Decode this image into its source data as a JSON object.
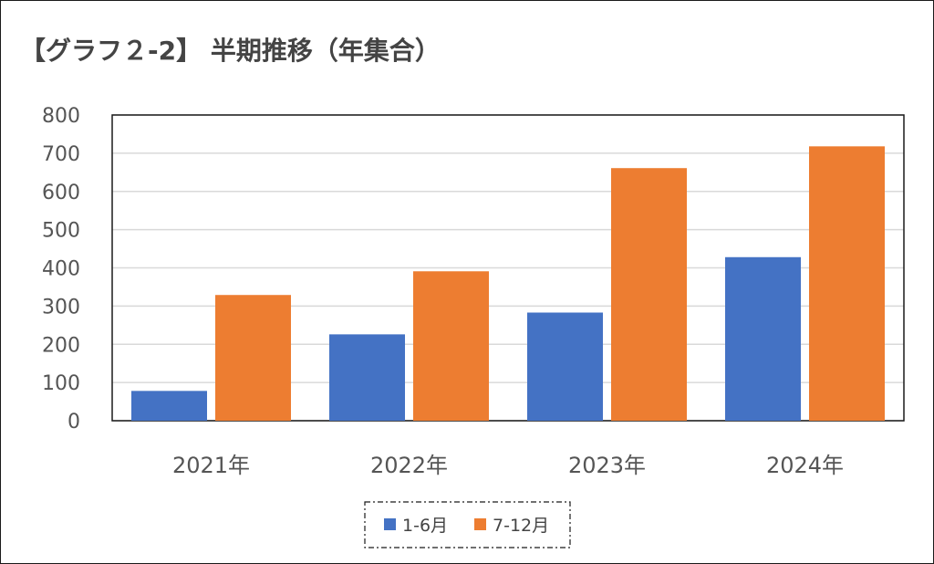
{
  "chart_data": {
    "type": "bar",
    "title": "【グラフ２-2】 半期推移（年集合）",
    "categories": [
      "2021年",
      "2022年",
      "2023年",
      "2024年"
    ],
    "series": [
      {
        "name": "1-6月",
        "color": "#4472C4",
        "values": [
          78,
          226,
          283,
          428
        ]
      },
      {
        "name": "7-12月",
        "color": "#ED7D31",
        "values": [
          329,
          391,
          661,
          718
        ]
      }
    ],
    "yticks": [
      "0",
      "100",
      "200",
      "300",
      "400",
      "500",
      "600",
      "700",
      "800"
    ],
    "ylim": [
      0,
      800
    ],
    "grid": true,
    "legend_position": "bottom"
  }
}
